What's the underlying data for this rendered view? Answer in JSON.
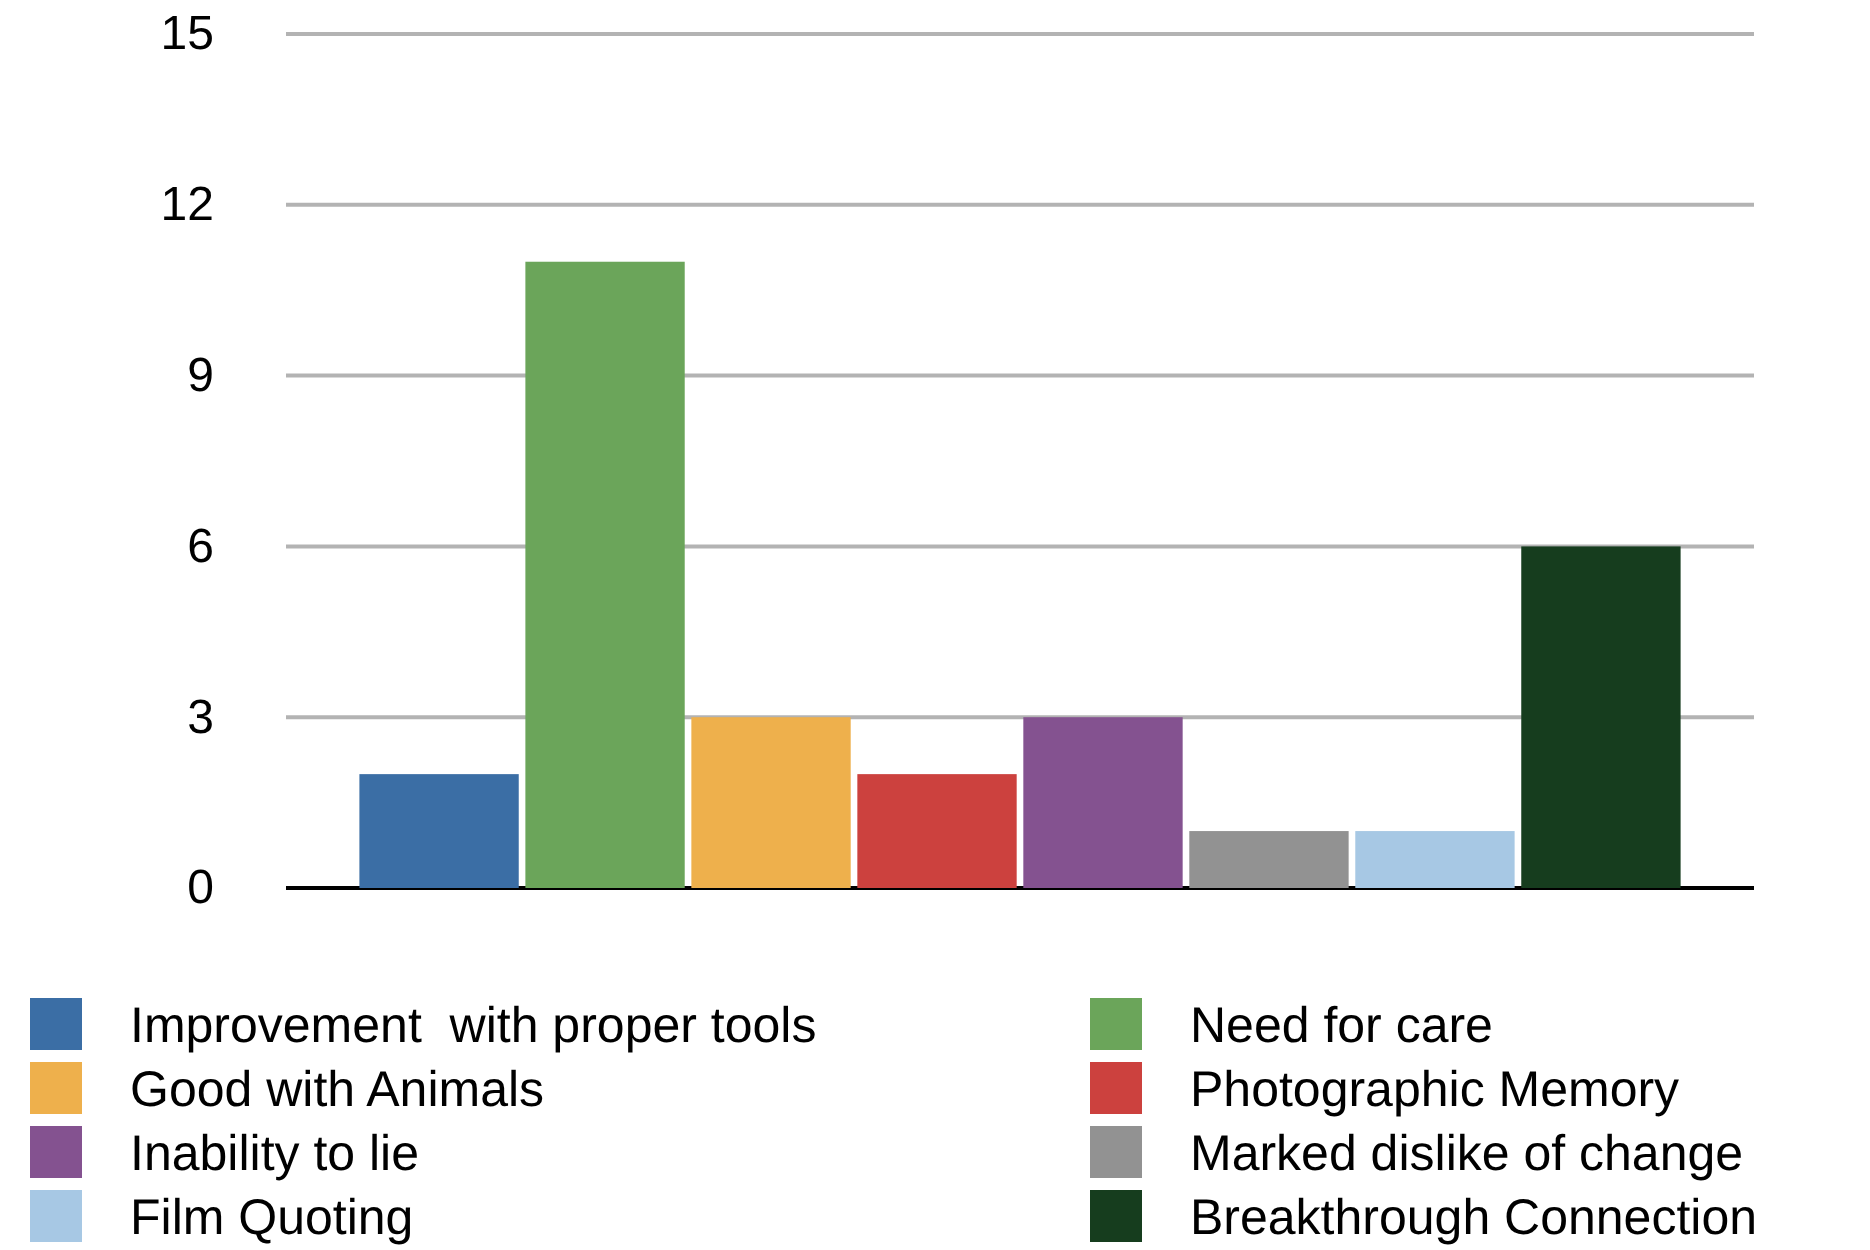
{
  "chart_data": {
    "type": "bar",
    "categories": [
      null
    ],
    "series": [
      {
        "name": "Improvement  with proper tools",
        "color": "#3b6ea5",
        "values": [
          2
        ]
      },
      {
        "name": "Need for care",
        "color": "#6ba55a",
        "values": [
          11
        ]
      },
      {
        "name": "Good with Animals",
        "color": "#eeb04c",
        "values": [
          3
        ]
      },
      {
        "name": "Photographic Memory",
        "color": "#cc413e",
        "values": [
          2
        ]
      },
      {
        "name": "Inability to lie",
        "color": "#845290",
        "values": [
          3
        ]
      },
      {
        "name": "Marked dislike of change",
        "color": "#929292",
        "values": [
          1
        ]
      },
      {
        "name": "Film Quoting",
        "color": "#a7c8e4",
        "values": [
          1
        ]
      },
      {
        "name": "Breakthrough Connection",
        "color": "#163d1e",
        "values": [
          6
        ]
      }
    ],
    "ylim": [
      0,
      15
    ],
    "yticks": [
      0,
      3,
      6,
      9,
      12,
      15
    ],
    "grid": "y",
    "legend": "bottom"
  }
}
